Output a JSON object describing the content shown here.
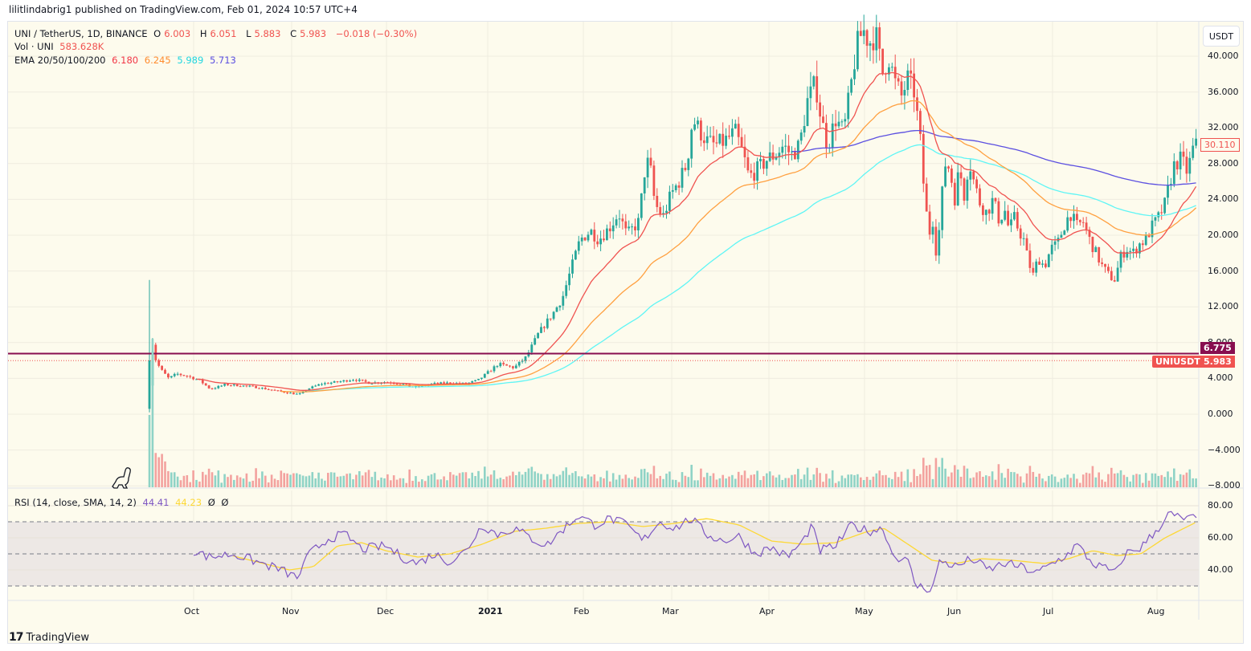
{
  "header": {
    "published": "lilitlindabrig1 published on TradingView.com, Feb 01, 2024 10:57 UTC+4"
  },
  "legend": {
    "symbol": "UNI / TetherUS, 1D, BINANCE",
    "open_label": "O",
    "open": "6.003",
    "high_label": "H",
    "high": "6.051",
    "low_label": "L",
    "low": "5.883",
    "close_label": "C",
    "close": "5.983",
    "change": "−0.018 (−0.30%)",
    "volume_label": "Vol · UNI",
    "volume": "583.628K",
    "ema_label": "EMA 20/50/100/200",
    "ema20": "6.180",
    "ema50": "6.245",
    "ema100": "5.989",
    "ema200": "5.713",
    "rsi_label": "RSI (14, close, SMA, 14, 2)",
    "rsi_value": "44.41",
    "rsi_sma_value": "44.23",
    "rsi_extra1": "Ø",
    "rsi_extra2": "Ø"
  },
  "price_scale": {
    "currency_button": "USDT",
    "ticks": [
      "40.000",
      "36.000",
      "32.000",
      "28.000",
      "24.000",
      "20.000",
      "16.000",
      "12.000",
      "8.000",
      "4.000",
      "0.000",
      "−4.000",
      "−8.000"
    ],
    "last_price_tag": "30.110",
    "horizontal_line_tag": "6.775",
    "symbol_tag_label": "UNIUSDT",
    "symbol_tag_value": "5.983"
  },
  "rsi_scale": {
    "ticks": [
      "80.00",
      "60.00",
      "40.00"
    ]
  },
  "time_scale": {
    "labels": [
      "Oct",
      "Nov",
      "Dec",
      "2021",
      "Feb",
      "Mar",
      "Apr",
      "May",
      "Jun",
      "Jul",
      "Aug"
    ]
  },
  "footer": {
    "brand": "TradingView",
    "brand_mark": "17"
  },
  "colors": {
    "background": "#fdfbed",
    "up": "#26a69a",
    "down": "#ef5350",
    "ema20": "#f05350",
    "ema50": "#ffa040",
    "ema100": "#5ff5f5",
    "ema200": "#5b4fe0",
    "hline": "#880e4f",
    "rsi": "#7e57c2",
    "rsi_sma": "#fdd835"
  },
  "chart_data": [
    {
      "type": "candlestick",
      "title": "UNI / TetherUS, 1D, BINANCE",
      "ylabel": "USDT",
      "ylim": [
        -8,
        42
      ],
      "x_labels": [
        "Oct",
        "Nov",
        "Dec",
        "2021",
        "Feb",
        "Mar",
        "Apr",
        "May",
        "Jun",
        "Jul",
        "Aug"
      ],
      "approx_monthly_close": {
        "x": [
          "Sep 2020",
          "Oct 2020",
          "Nov 2020",
          "Dec 2020",
          "Jan 2021",
          "Feb 2021",
          "Mar 2021",
          "Apr 2021",
          "May 2021",
          "Jun 2021",
          "Jul 2021",
          "Aug 2021"
        ],
        "values": [
          4.0,
          3.0,
          3.5,
          5.0,
          17.0,
          30.0,
          29.0,
          38.0,
          18.0,
          17.0,
          24.0,
          30.1
        ]
      },
      "key_points": {
        "listing_spike_high": 15.0,
        "all_time_high_may": 44.9,
        "may_crash_low": 13.0,
        "june_low": 14.0,
        "july_low": 14.2,
        "last_close": 30.11
      },
      "series": [
        {
          "name": "EMA 20",
          "color": "#f05350",
          "legend_value": 6.18
        },
        {
          "name": "EMA 50",
          "color": "#ffa040",
          "legend_value": 6.245
        },
        {
          "name": "EMA 100",
          "color": "#5ff5f5",
          "legend_value": 5.989
        },
        {
          "name": "EMA 200",
          "color": "#5b4fe0",
          "legend_value": 5.713
        }
      ],
      "horizontal_line": 6.775,
      "current_price_line": 5.983,
      "grid": true
    },
    {
      "type": "bar",
      "title": "Vol · UNI",
      "legend_value": "583.628K",
      "note": "Volume bars highest at listing (Sep 2020), declining thereafter"
    },
    {
      "type": "line",
      "title": "RSI (14, close, SMA, 14, 2)",
      "ylim": [
        25,
        85
      ],
      "bands": {
        "upper": 70,
        "middle": 50,
        "lower": 30
      },
      "series": [
        {
          "name": "RSI",
          "color": "#7e57c2",
          "legend_value": 44.41,
          "approx_monthly": [
            52,
            45,
            40,
            55,
            65,
            72,
            68,
            57,
            48,
            45,
            50,
            72
          ]
        },
        {
          "name": "RSI SMA",
          "color": "#fdd835",
          "legend_value": 44.23,
          "approx_monthly": [
            50,
            47,
            42,
            53,
            62,
            70,
            66,
            58,
            45,
            42,
            46,
            70
          ]
        }
      ],
      "ytick_labels": [
        "80.00",
        "60.00",
        "40.00"
      ],
      "grid": true
    }
  ]
}
